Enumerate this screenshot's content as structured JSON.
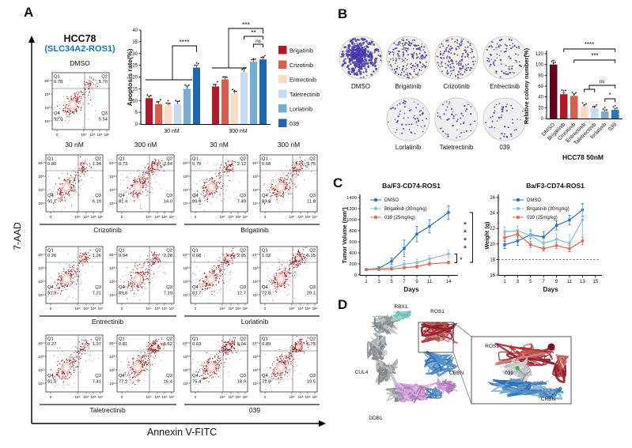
{
  "panels": {
    "a": {
      "letter": "A",
      "cell_line": "HCC78",
      "fusion": "(SLC34A2-ROS1)",
      "dmso_label": "DMSO",
      "y_axis": "7-AAD",
      "x_axis": "Annexin V-FITC",
      "col_headers": [
        "30 nM",
        "300 nM",
        "30 nM",
        "300 nM"
      ],
      "quad_names": [
        "Q1",
        "Q2",
        "Q3",
        "Q4"
      ],
      "flow_y_ticks": [
        "10⁴",
        "10³",
        "10²",
        "10¹"
      ],
      "flow_x_ticks": [
        "0",
        "10⁴",
        "10⁵",
        "10⁶",
        "10⁷"
      ],
      "dmso_plot": {
        "q1": "0.78",
        "q2": "1.70",
        "q3": "5.54",
        "q4": "92.0"
      },
      "rows": [
        {
          "left_drug": "Crizotinib",
          "right_drug": "Brigatinib",
          "plots": [
            {
              "q1": "0.80",
              "q2": "1.94",
              "q3": "6.19",
              "q4": "91.1"
            },
            {
              "q1": "0.73",
              "q2": "3.84",
              "q3": "14.0",
              "q4": "81.4"
            },
            {
              "q1": "0.79",
              "q2": "2.12",
              "q3": "7.49",
              "q4": "89.6"
            },
            {
              "q1": "0.68",
              "q2": "3.75",
              "q3": "11.8",
              "q4": "83.8"
            }
          ]
        },
        {
          "left_drug": "Entrectinib",
          "right_drug": "Lorlatinib",
          "plots": [
            {
              "q1": "0.26",
              "q2": "1.26",
              "q3": "7.21",
              "q4": "91.3"
            },
            {
              "q1": "0.94",
              "q2": "2.28",
              "q3": "7.19",
              "q4": "89.6"
            },
            {
              "q1": "0.68",
              "q2": "2.95",
              "q3": "12.7",
              "q4": "83.7"
            },
            {
              "q1": "1.02",
              "q2": "6.15",
              "q3": "20.1",
              "q4": "72.8"
            }
          ]
        },
        {
          "left_drug": "Taletrectinib",
          "right_drug": "039",
          "plots": [
            {
              "q1": "0.27",
              "q2": "1.37",
              "q3": "7.41",
              "q4": "91.0"
            },
            {
              "q1": "0.81",
              "q2": "5.62",
              "q3": "16.4",
              "q4": "77.2"
            },
            {
              "q1": "0.63",
              "q2": "5.04",
              "q3": "18.9",
              "q4": "75.4"
            },
            {
              "q1": "0.89",
              "q2": "6.75",
              "q3": "19.5",
              "q4": "72.8"
            }
          ]
        }
      ]
    },
    "b": {
      "letter": "B",
      "dish_rows": [
        [
          "DMSO",
          "Brigatinib",
          "Crizotinib",
          "Entrectinib"
        ],
        [
          "Lorlatinib",
          "Taletrectinib",
          "039"
        ]
      ],
      "dish_dots": [
        420,
        200,
        160,
        85,
        60,
        52,
        46
      ],
      "colony_color": "#4a3fae"
    },
    "c": {
      "letter": "C"
    },
    "d": {
      "letter": "D",
      "labels": {
        "rbx1": "RBX1",
        "ros1": "ROS1",
        "cul4": "CUL4",
        "crbn": "CRBN",
        "ddb1": "DDB1"
      },
      "inset_labels": {
        "ros1": "ROS1",
        "ligand": "039",
        "crbn": "CRBN"
      }
    }
  },
  "chart_data": [
    {
      "id": "apoptosis",
      "type": "bar",
      "panel": "A",
      "ylabel": "Apoptosis rate(%)",
      "ylim": [
        0,
        40
      ],
      "ytick_step": 5,
      "groups": [
        "30 nM",
        "300 nM"
      ],
      "series": [
        {
          "name": "Brigatinib",
          "color": "#b2182b",
          "values": [
            11,
            16
          ]
        },
        {
          "name": "Crizotinib",
          "color": "#d6604d",
          "values": [
            8.5,
            19
          ]
        },
        {
          "name": "Entrectinib",
          "color": "#fddbc7",
          "values": [
            8,
            13
          ]
        },
        {
          "name": "Taletrectinib",
          "color": "#c6dbef",
          "values": [
            8.5,
            22
          ]
        },
        {
          "name": "Lorlatinib",
          "color": "#74add1",
          "values": [
            15,
            26.5
          ]
        },
        {
          "name": "039",
          "color": "#2166ac",
          "values": [
            24,
            27.5
          ]
        }
      ],
      "errors": [
        [
          0.8,
          0.8
        ],
        [
          1,
          1.2
        ],
        [
          1,
          1
        ],
        [
          1,
          1.5
        ],
        [
          0.8,
          1
        ],
        [
          1,
          0.8
        ]
      ],
      "significance": [
        "****",
        "***",
        "**",
        "ns"
      ]
    },
    {
      "id": "colony",
      "type": "bar",
      "panel": "B",
      "title": "HCC78 50nM",
      "ylabel": "Relative colony number(%)",
      "ylim": [
        0,
        120
      ],
      "ytick_step": 20,
      "categories": [
        "DMSO",
        "Brigatinib",
        "Crizotinib",
        "Entrectinib",
        "Taletrectinib",
        "lorlatinib",
        "039"
      ],
      "values": [
        100,
        45,
        42,
        22,
        19,
        13,
        16
      ],
      "errors": [
        8,
        3,
        4,
        3,
        4,
        3,
        3
      ],
      "colors": [
        "#67001f",
        "#b2182b",
        "#d6604d",
        "#fddbc7",
        "#c6dbef",
        "#74add1",
        "#2e74b5"
      ],
      "significance": [
        "****",
        "***",
        "ns",
        "*"
      ]
    },
    {
      "id": "tumor_volume",
      "type": "line",
      "panel": "C",
      "title": "Ba/F3-CD74-ROS1",
      "xlabel": "Days",
      "ylabel": "Tumor Volume (mm³)",
      "x": [
        1,
        3,
        5,
        7,
        9,
        11,
        14
      ],
      "ylim": [
        0,
        1400
      ],
      "ytick_step": 200,
      "series": [
        {
          "name": "DMSO",
          "color": "#2c6fad",
          "values": [
            100,
            120,
            250,
            480,
            740,
            880,
            1130
          ],
          "errors": [
            20,
            30,
            60,
            150,
            140,
            120,
            120
          ]
        },
        {
          "name": "Brigatinib (30mg/kg)",
          "color": "#8bbbd9",
          "values": [
            100,
            110,
            130,
            195,
            225,
            290,
            380
          ],
          "errors": [
            12,
            20,
            30,
            70,
            60,
            60,
            70
          ]
        },
        {
          "name": "039 (25mg/kg)",
          "color": "#d96a55",
          "values": [
            95,
            100,
            105,
            130,
            150,
            200,
            225
          ],
          "errors": [
            8,
            10,
            12,
            20,
            25,
            30,
            25
          ]
        }
      ],
      "significance": [
        "****",
        "*"
      ]
    },
    {
      "id": "weight",
      "type": "line",
      "panel": "C",
      "title": "Ba/F3-CD74-ROS1",
      "xlabel": "Days",
      "ylabel": "Weight (g)",
      "x": [
        1,
        3,
        5,
        7,
        9,
        11,
        13
      ],
      "xticks": [
        1,
        3,
        5,
        7,
        9,
        11,
        13,
        15
      ],
      "ylim": [
        16,
        26
      ],
      "ytick_step": 2,
      "dashed_line": 18,
      "series": [
        {
          "name": "DMSO",
          "color": "#2c6fad",
          "values": [
            19.9,
            20.4,
            21.2,
            20.9,
            22.4,
            23.1,
            24.4
          ],
          "errors": [
            0.5,
            0.6,
            0.5,
            0.7,
            0.6,
            0.6,
            0.8
          ]
        },
        {
          "name": "Brigatinib (30mg/kg)",
          "color": "#8bbbd9",
          "values": [
            21.6,
            21.7,
            21.1,
            20.1,
            20.6,
            20.1,
            23.1
          ],
          "errors": [
            0.6,
            0.6,
            0.8,
            0.6,
            0.7,
            1.1,
            2.0
          ]
        },
        {
          "name": "039 (25mg/kg)",
          "color": "#d96a55",
          "values": [
            20.8,
            21.3,
            19.9,
            19.4,
            19.8,
            19.4,
            20.4
          ],
          "errors": [
            0.5,
            0.5,
            0.4,
            0.3,
            0.4,
            0.4,
            0.5
          ]
        }
      ]
    }
  ]
}
